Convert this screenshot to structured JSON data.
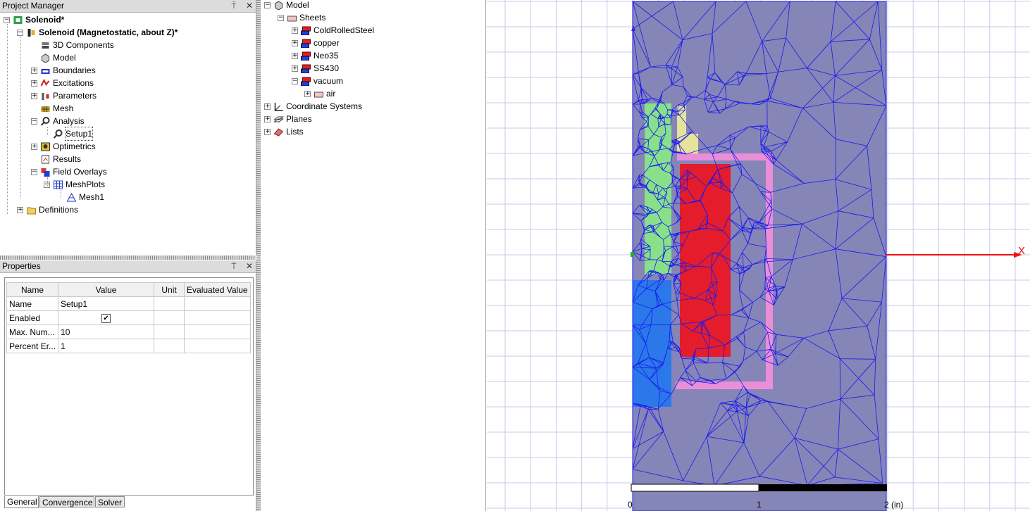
{
  "project_manager": {
    "title": "Project Manager",
    "pin_glyph": "⍑",
    "close_glyph": "✕",
    "tree": [
      {
        "label": "Solenoid*",
        "bold": true,
        "icon": "project-icon",
        "expander": "−"
      },
      {
        "label": "Solenoid (Magnetostatic, about Z)*",
        "bold": true,
        "icon": "design-icon",
        "expander": "−"
      },
      {
        "label": "3D Components",
        "icon": "components-icon"
      },
      {
        "label": "Model",
        "icon": "model-icon"
      },
      {
        "label": "Boundaries",
        "icon": "boundaries-icon",
        "expander": "+"
      },
      {
        "label": "Excitations",
        "icon": "excitations-icon",
        "expander": "+"
      },
      {
        "label": "Parameters",
        "icon": "parameters-icon",
        "expander": "+"
      },
      {
        "label": "Mesh",
        "icon": "mesh-icon"
      },
      {
        "label": "Analysis",
        "icon": "analysis-icon",
        "expander": "−"
      },
      {
        "label": "Setup1",
        "icon": "setup-icon",
        "selected": true
      },
      {
        "label": "Optimetrics",
        "icon": "optimetrics-icon",
        "expander": "+"
      },
      {
        "label": "Results",
        "icon": "results-icon"
      },
      {
        "label": "Field Overlays",
        "icon": "field-overlays-icon",
        "expander": "−"
      },
      {
        "label": "MeshPlots",
        "icon": "meshplots-icon",
        "expander": "−"
      },
      {
        "label": "Mesh1",
        "icon": "mesh1-icon"
      },
      {
        "label": "Definitions",
        "icon": "folder-icon",
        "expander": "+"
      }
    ]
  },
  "properties": {
    "title": "Properties",
    "columns": [
      "Name",
      "Value",
      "Unit",
      "Evaluated Value"
    ],
    "rows": [
      {
        "name": "Name",
        "value": "Setup1",
        "unit": "",
        "evaluated": ""
      },
      {
        "name": "Enabled",
        "value": "",
        "checked": true,
        "unit": "",
        "evaluated": ""
      },
      {
        "name": "Max. Num...",
        "value": "10",
        "unit": "",
        "evaluated": ""
      },
      {
        "name": "Percent Er...",
        "value": "1",
        "unit": "",
        "evaluated": ""
      }
    ],
    "check_glyph": "✔",
    "tabs": [
      "General",
      "Convergence",
      "Solver"
    ],
    "active_tab": "General"
  },
  "model_tree": {
    "items": [
      {
        "label": "Model",
        "icon": "model-icon",
        "expander": "−"
      },
      {
        "label": "Sheets",
        "icon": "sheets-icon",
        "expander": "−"
      },
      {
        "label": "ColdRolledSteel",
        "icon": "material-icon",
        "expander": "+"
      },
      {
        "label": "copper",
        "icon": "material-icon",
        "expander": "+"
      },
      {
        "label": "Neo35",
        "icon": "material-icon",
        "expander": "+"
      },
      {
        "label": "SS430",
        "icon": "material-icon",
        "expander": "+"
      },
      {
        "label": "vacuum",
        "icon": "material-icon",
        "expander": "−"
      },
      {
        "label": "air",
        "icon": "sheet-object-icon",
        "expander": "+"
      },
      {
        "label": "Coordinate Systems",
        "icon": "coordinate-systems-icon",
        "expander": "+"
      },
      {
        "label": "Planes",
        "icon": "planes-icon",
        "expander": "+"
      },
      {
        "label": "Lists",
        "icon": "lists-icon",
        "expander": "+"
      }
    ]
  },
  "viewport": {
    "axis_label": "X",
    "scale_labels": [
      "0",
      "1",
      "2 (in)"
    ],
    "colors": {
      "background": "#ffffff",
      "grid": "#c6cbe8",
      "air_region": "#8585b8",
      "mesh": "#1a1aee",
      "green_part": "#88e08a",
      "yellow_part": "#e6e49a",
      "red_part": "#e41c2c",
      "pink_part": "#ea8ed8",
      "blue_part": "#2a78ea",
      "axis": "#ee1111"
    }
  }
}
